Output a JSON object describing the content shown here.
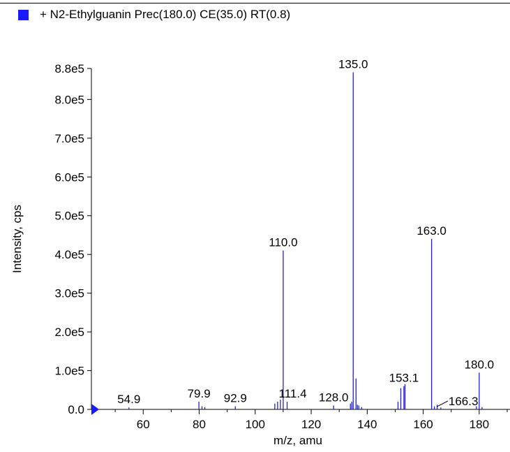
{
  "legend": {
    "label": "+ N2-Ethylguanin Prec(180.0) CE(35.0) RT(0.8)",
    "swatch_color": "#1a1aff"
  },
  "chart_data": {
    "type": "bar",
    "title": "",
    "xlabel": "m/z, amu",
    "ylabel": "Intensity, cps",
    "xlim": [
      41.5,
      191
    ],
    "ylim": [
      0,
      880000
    ],
    "x_ticks": [
      60,
      80,
      100,
      120,
      140,
      160,
      180
    ],
    "x_tick_labels": [
      "60",
      "80",
      "100",
      "120",
      "140",
      "160",
      "180"
    ],
    "y_ticks": [
      0,
      100000,
      200000,
      300000,
      400000,
      500000,
      600000,
      700000,
      800000,
      880000
    ],
    "y_tick_labels": [
      "0.0",
      "1.0e5",
      "2.0e5",
      "3.0e5",
      "4.0e5",
      "5.0e5",
      "6.0e5",
      "7.0e5",
      "8.0e5",
      "8.8e5"
    ],
    "bar_color": "#2222cc",
    "series": [
      {
        "x": [
          54.9,
          79.9,
          81.0,
          82.0,
          92.9,
          107.0,
          108.0,
          109.0,
          110.0,
          111.4,
          128.0,
          134.0,
          134.5,
          135.0,
          136.0,
          136.5,
          137.0,
          138.0,
          151.0,
          152.0,
          153.1,
          153.5,
          163.0,
          164.0,
          165.0,
          166.3,
          179.0,
          180.0,
          181.0
        ],
        "values": [
          5000,
          20000,
          8000,
          6000,
          8000,
          15000,
          20000,
          25000,
          410000,
          20000,
          10000,
          15000,
          20000,
          870000,
          80000,
          12000,
          10000,
          6000,
          20000,
          55000,
          60000,
          65000,
          440000,
          8000,
          12000,
          5000,
          8000,
          95000,
          6000
        ]
      }
    ],
    "peak_labels": [
      {
        "x": 54.9,
        "text": "54.9"
      },
      {
        "x": 79.9,
        "text": "79.9"
      },
      {
        "x": 92.9,
        "text": "92.9"
      },
      {
        "x": 110.0,
        "text": "110.0"
      },
      {
        "x": 111.4,
        "text": "111.4"
      },
      {
        "x": 128.0,
        "text": "128.0"
      },
      {
        "x": 135.0,
        "text": "135.0"
      },
      {
        "x": 153.1,
        "text": "153.1"
      },
      {
        "x": 163.0,
        "text": "163.0"
      },
      {
        "x": 166.3,
        "text": "166.3"
      },
      {
        "x": 180.0,
        "text": "180.0"
      }
    ],
    "grid": false
  }
}
